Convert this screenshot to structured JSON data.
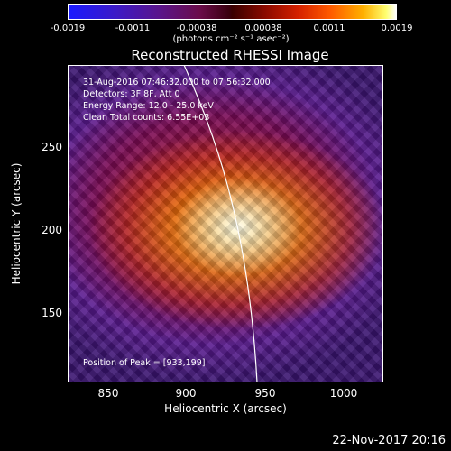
{
  "colorbar": {
    "ticks": [
      "-0.0019",
      "-0.0011",
      "-0.00038",
      "0.00038",
      "0.0011",
      "0.0019"
    ],
    "units": "(photons cm⁻² s⁻¹ asec⁻²)"
  },
  "title": "Reconstructed RHESSI Image",
  "annotations": {
    "time": "31-Aug-2016 07:46:32.000 to 07:56:32.000",
    "detectors": "Detectors: 3F 8F, Att 0",
    "energy": "Energy Range: 12.0 - 25.0 keV",
    "clean": "Clean    Total counts: 6.55E+03",
    "peak": "Position of Peak = [933,199]"
  },
  "axes": {
    "xlabel": "Heliocentric X (arcsec)",
    "ylabel": "Heliocentric Y (arcsec)",
    "xticks": [
      "850",
      "900",
      "950",
      "1000"
    ],
    "yticks": [
      "250",
      "200",
      "150"
    ]
  },
  "timestamp": "22-Nov-2017 20:16"
}
